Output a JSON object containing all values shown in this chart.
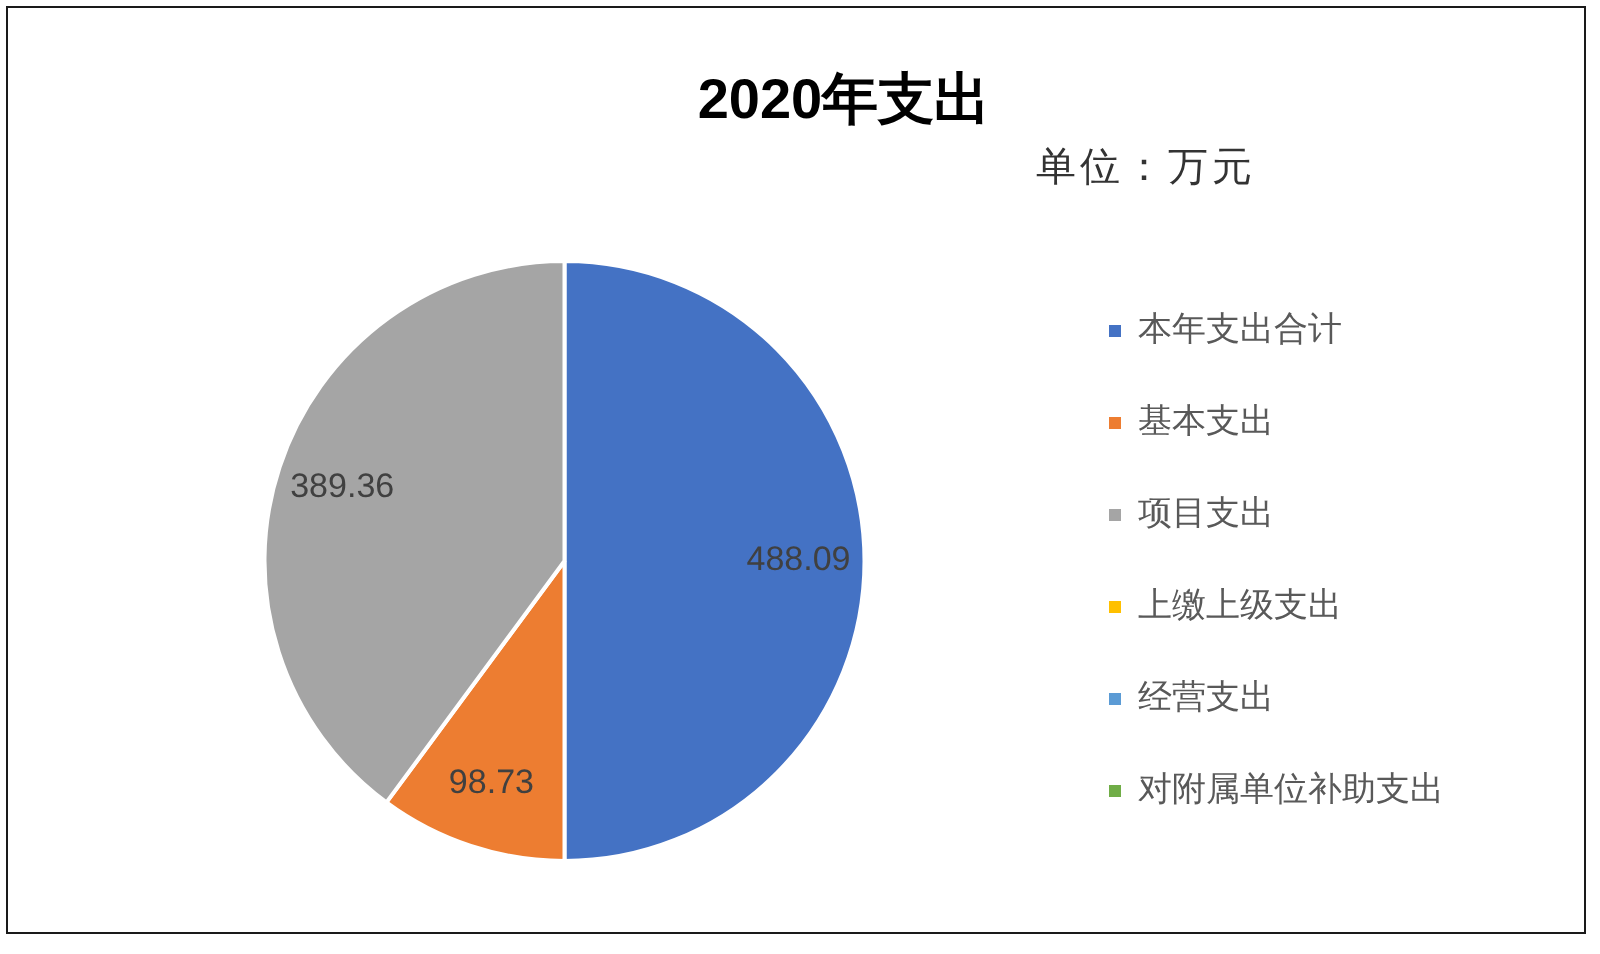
{
  "chart_data": {
    "type": "pie",
    "title": "2020年支出",
    "subtitle": "单位：万元",
    "categories": [
      "本年支出合计",
      "基本支出",
      "项目支出",
      "上缴上级支出",
      "经营支出",
      "对附属单位补助支出"
    ],
    "values": [
      488.09,
      98.73,
      389.36,
      0,
      0,
      0
    ],
    "colors": [
      "#4472c4",
      "#ed7d31",
      "#a5a5a5",
      "#ffc000",
      "#5b9bd5",
      "#70ad47"
    ],
    "value_labels": [
      "488.09",
      "98.73",
      "389.36",
      null,
      null,
      null
    ],
    "legend": "right"
  }
}
